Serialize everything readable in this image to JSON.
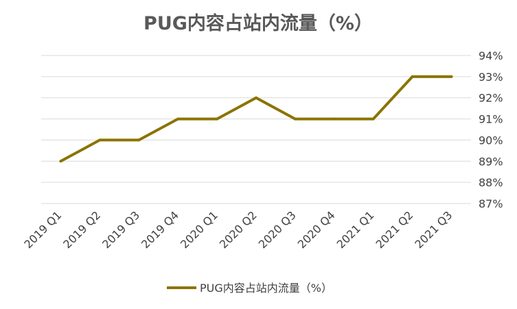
{
  "chart_data": {
    "type": "line",
    "title": "PUG内容占站内流量（%）",
    "categories": [
      "2019 Q1",
      "2019 Q2",
      "2019 Q3",
      "2019 Q4",
      "2020 Q1",
      "2020 Q2",
      "2020 Q3",
      "2020 Q4",
      "2021 Q1",
      "2021 Q2",
      "2021 Q3"
    ],
    "series": [
      {
        "name": "PUG内容占站内流量（%）",
        "values": [
          89,
          90,
          90,
          91,
          91,
          92,
          91,
          91,
          91,
          93,
          93
        ]
      }
    ],
    "y_ticks": [
      "87%",
      "88%",
      "89%",
      "90%",
      "91%",
      "92%",
      "93%",
      "94%"
    ],
    "ylim": [
      87,
      94
    ],
    "y_axis_side": "right",
    "grid": true,
    "legend": "bottom",
    "colors": {
      "line": "#8B7300",
      "grid": "#D9D9D9",
      "text": "#404040",
      "title": "#595959"
    }
  }
}
